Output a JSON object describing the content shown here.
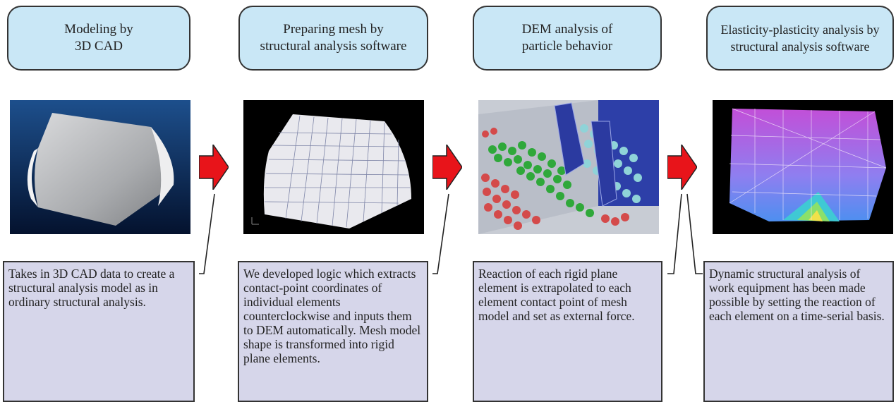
{
  "stages": [
    {
      "title": "Modeling by\n3D CAD",
      "description": "Takes in 3D CAD data to create a structural analysis model as in ordinary structural analysis.",
      "image_icon": "cad-model-render-icon"
    },
    {
      "title": "Preparing mesh by\nstructural analysis software",
      "description": "We developed logic which extracts contact-point coordinates of individual elements counterclockwise and inputs them to DEM automatically. Mesh model shape is transformed into rigid plane elements.",
      "image_icon": "mesh-model-render-icon"
    },
    {
      "title": "DEM analysis of\nparticle behavior",
      "description": "Reaction of each rigid plane element is extrapolated to each element contact point of mesh model and set as external force.",
      "image_icon": "particle-simulation-render-icon"
    },
    {
      "title": "Elasticity-plasticity analysis by\nstructural analysis software",
      "description": "Dynamic structural analysis of work equipment has been made possible by setting the reaction of each element on a time-serial basis.",
      "image_icon": "stress-contour-render-icon"
    }
  ],
  "colors": {
    "box_fill": "#c9e7f6",
    "desc_fill": "#d6d6ea",
    "arrow_fill": "#e8141a",
    "border": "#333333"
  }
}
